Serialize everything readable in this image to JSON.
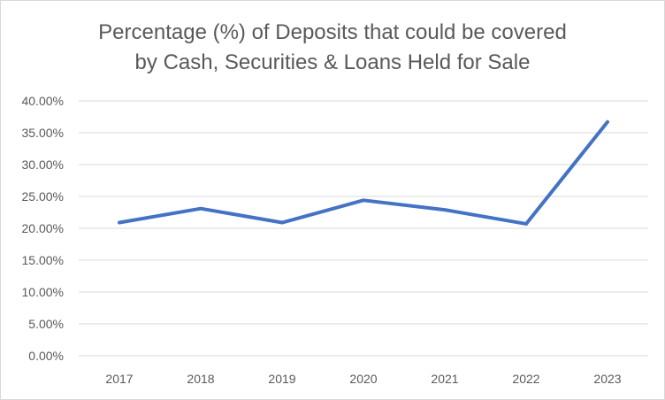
{
  "chart_data": {
    "type": "line",
    "title_lines": [
      "Percentage (%) of Deposits that could be covered",
      "by Cash, Securities & Loans Held for Sale"
    ],
    "categories": [
      "2017",
      "2018",
      "2019",
      "2020",
      "2021",
      "2022",
      "2023"
    ],
    "series": [
      {
        "values": [
          20.9,
          23.1,
          20.9,
          24.4,
          22.9,
          20.7,
          36.7
        ],
        "color": "#4472c4"
      }
    ],
    "ylim": [
      0,
      40
    ],
    "yticks": [
      "0.00%",
      "5.00%",
      "10.00%",
      "15.00%",
      "20.00%",
      "25.00%",
      "30.00%",
      "35.00%",
      "40.00%"
    ],
    "ytick_values": [
      0,
      5,
      10,
      15,
      20,
      25,
      30,
      35,
      40
    ],
    "grid": true,
    "legend": "none"
  }
}
